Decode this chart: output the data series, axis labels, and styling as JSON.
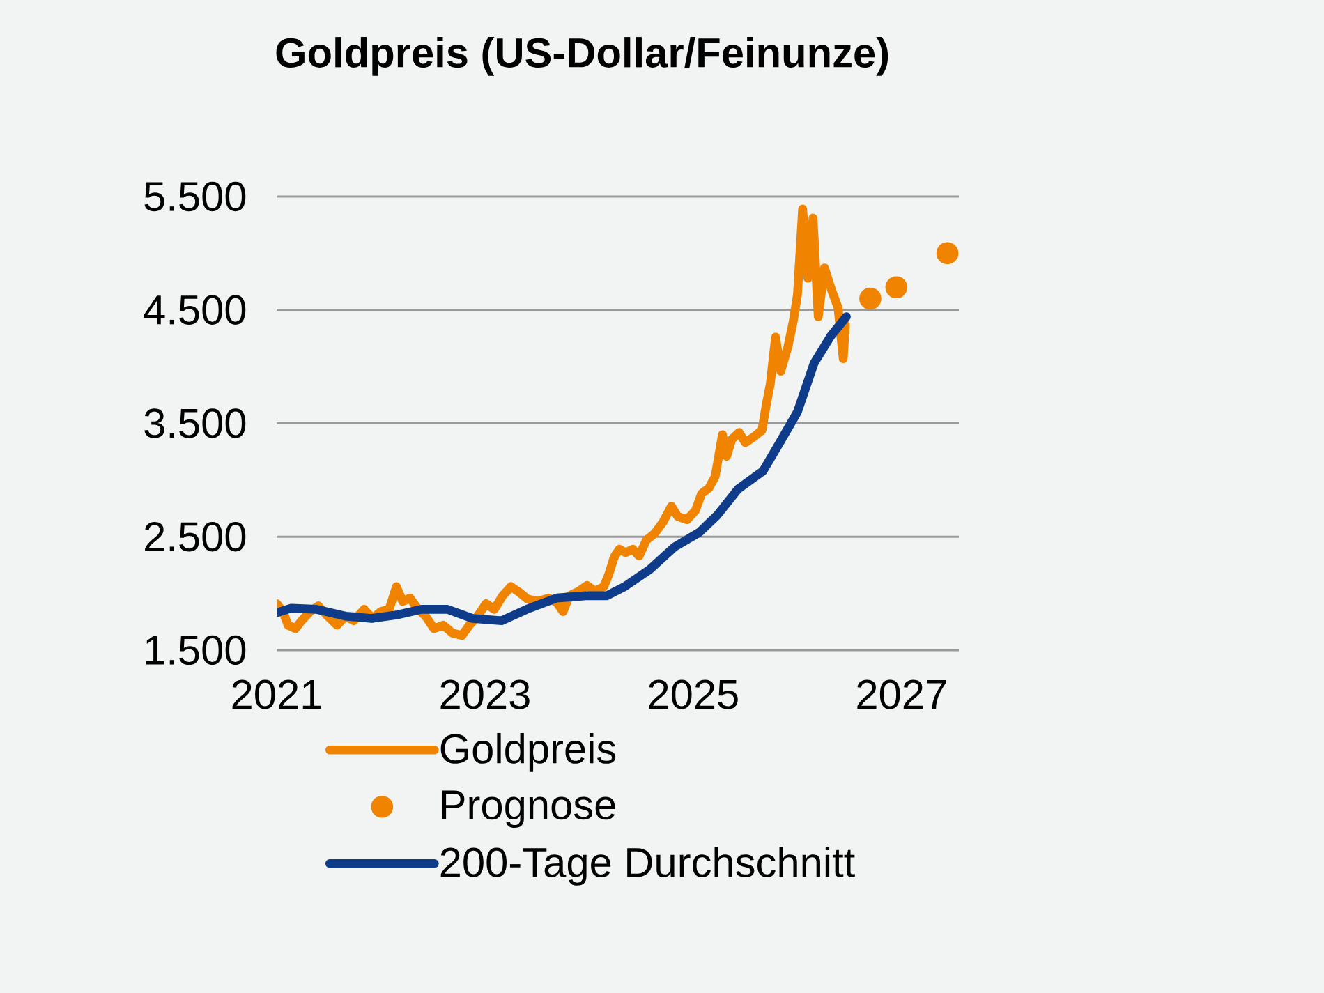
{
  "chart_data": {
    "type": "line",
    "title": "Goldpreis (US-Dollar/Feinunze)",
    "legend": "bottom",
    "grid": "y",
    "xlim": [
      2021,
      2027.55
    ],
    "ylim": [
      1500,
      5500
    ],
    "xticks": [
      2021,
      2023,
      2025,
      2027
    ],
    "yticks": [
      {
        "value": 1500,
        "label": "1.500"
      },
      {
        "value": 2500,
        "label": "2.500"
      },
      {
        "value": 3500,
        "label": "3.500"
      },
      {
        "value": 4500,
        "label": "4.500"
      },
      {
        "value": 5500,
        "label": "5.500"
      }
    ],
    "series": [
      {
        "name": "Goldpreis",
        "marker": "none",
        "color": "#f08300",
        "x": [
          2021.0,
          2021.06,
          2021.11,
          2021.18,
          2021.24,
          2021.32,
          2021.4,
          2021.49,
          2021.58,
          2021.66,
          2021.74,
          2021.84,
          2021.92,
          2022.0,
          2022.08,
          2022.15,
          2022.21,
          2022.28,
          2022.36,
          2022.43,
          2022.51,
          2022.6,
          2022.69,
          2022.78,
          2022.85,
          2022.93,
          2023.01,
          2023.09,
          2023.17,
          2023.25,
          2023.33,
          2023.41,
          2023.51,
          2023.61,
          2023.69,
          2023.75,
          2023.81,
          2023.9,
          2023.98,
          2024.06,
          2024.14,
          2024.19,
          2024.24,
          2024.29,
          2024.35,
          2024.42,
          2024.48,
          2024.55,
          2024.63,
          2024.71,
          2024.79,
          2024.85,
          2024.94,
          2025.02,
          2025.08,
          2025.15,
          2025.21,
          2025.28,
          2025.32,
          2025.37,
          2025.44,
          2025.5,
          2025.58,
          2025.66,
          2025.7,
          2025.74,
          2025.79,
          2025.84,
          2025.91,
          2025.96,
          2026.0,
          2026.05,
          2026.1,
          2026.15,
          2026.2,
          2026.26,
          2026.33,
          2026.39,
          2026.44,
          2026.46
        ],
        "values": [
          1910,
          1840,
          1720,
          1690,
          1760,
          1840,
          1890,
          1800,
          1720,
          1800,
          1760,
          1860,
          1780,
          1840,
          1860,
          2060,
          1930,
          1960,
          1860,
          1800,
          1690,
          1720,
          1650,
          1630,
          1720,
          1800,
          1910,
          1860,
          1980,
          2060,
          2010,
          1950,
          1930,
          1960,
          1920,
          1840,
          1980,
          2020,
          2070,
          2020,
          2060,
          2170,
          2320,
          2390,
          2360,
          2390,
          2330,
          2470,
          2530,
          2630,
          2770,
          2680,
          2650,
          2730,
          2880,
          2930,
          3030,
          3400,
          3210,
          3360,
          3420,
          3330,
          3380,
          3440,
          3660,
          3850,
          4260,
          3960,
          4180,
          4400,
          4630,
          5390,
          4780,
          5310,
          4440,
          4870,
          4670,
          4520,
          4070,
          4370
        ]
      },
      {
        "name": "Prognose",
        "type": "scatter",
        "marker": "circle",
        "color": "#f08300",
        "x": [
          2026.7,
          2026.95,
          2027.44
        ],
        "values": [
          4600,
          4700,
          5000
        ]
      },
      {
        "name": "200-Tage Durchschnitt",
        "marker": "none",
        "color": "#0f3c8a",
        "x": [
          2021.0,
          2021.14,
          2021.38,
          2021.66,
          2021.91,
          2022.15,
          2022.39,
          2022.64,
          2022.88,
          2023.16,
          2023.4,
          2023.69,
          2023.97,
          2024.17,
          2024.34,
          2024.58,
          2024.82,
          2025.06,
          2025.23,
          2025.43,
          2025.67,
          2025.83,
          2026.0,
          2026.16,
          2026.32,
          2026.47
        ],
        "values": [
          1830,
          1870,
          1860,
          1800,
          1780,
          1810,
          1860,
          1860,
          1780,
          1760,
          1860,
          1960,
          1980,
          1980,
          2060,
          2210,
          2410,
          2540,
          2690,
          2920,
          3080,
          3330,
          3600,
          4030,
          4270,
          4440
        ]
      }
    ]
  }
}
